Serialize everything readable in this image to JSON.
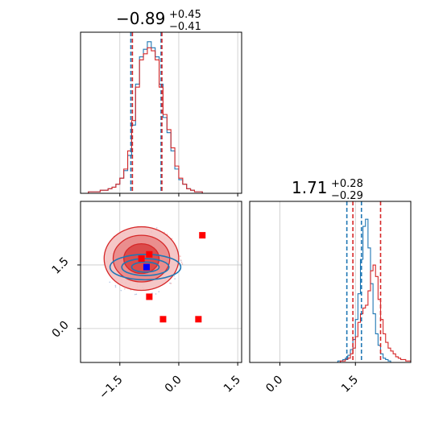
{
  "chart_data": [
    {
      "type": "histogram",
      "panel": "top-left",
      "title_value": "−0.89",
      "title_plus": "+0.45",
      "title_minus": "−0.41",
      "xlim": [
        -2.5,
        1.6
      ],
      "grid": true,
      "bin_edges_start": -2.5,
      "bin_width": 0.1,
      "series": [
        {
          "color": "#1f77b4",
          "counts": [
            0,
            0,
            1,
            1,
            1,
            2,
            2,
            3,
            4,
            6,
            10,
            15,
            25,
            45,
            72,
            90,
            95,
            100,
            96,
            90,
            72,
            50,
            40,
            28,
            16,
            9,
            6,
            3,
            2,
            1,
            1,
            0,
            0,
            0,
            0,
            0,
            0,
            0,
            0,
            0,
            0
          ]
        },
        {
          "color": "#d62728",
          "counts": [
            0,
            0,
            1,
            1,
            1,
            2,
            2,
            3,
            4,
            6,
            10,
            16,
            28,
            48,
            70,
            88,
            92,
            96,
            94,
            88,
            70,
            52,
            42,
            30,
            18,
            10,
            6,
            3,
            2,
            1,
            1,
            0,
            0,
            0,
            0,
            0,
            0,
            0,
            0,
            0,
            0
          ]
        }
      ],
      "quantile_lines": {
        "#1f77b4": [
          -1.22,
          -0.45
        ],
        "#d62728": [
          -1.18,
          -0.43
        ]
      }
    },
    {
      "type": "histogram",
      "panel": "bottom-right",
      "title_value": "1.71",
      "title_plus": "+0.28",
      "title_minus": "−0.29",
      "xlim": [
        -0.6,
        2.6
      ],
      "xticks": [
        "0.0",
        "1.5"
      ],
      "grid": true,
      "bin_edges_start": -0.6,
      "bin_width": 0.05,
      "series": [
        {
          "color": "#1f77b4",
          "counts": [
            0,
            0,
            0,
            0,
            0,
            0,
            0,
            0,
            0,
            0,
            0,
            0,
            0,
            0,
            0,
            0,
            0,
            0,
            0,
            0,
            0,
            0,
            0,
            0,
            0,
            0,
            0,
            0,
            0,
            0,
            0,
            0,
            0,
            0,
            0,
            1,
            1,
            2,
            3,
            5,
            9,
            16,
            30,
            48,
            72,
            95,
            100,
            80,
            55,
            34,
            20,
            12,
            6,
            3,
            2,
            1,
            0,
            0,
            0,
            0,
            0,
            0,
            0,
            0
          ]
        },
        {
          "color": "#d62728",
          "counts": [
            0,
            0,
            0,
            0,
            0,
            0,
            0,
            0,
            0,
            0,
            0,
            0,
            0,
            0,
            0,
            0,
            0,
            0,
            0,
            0,
            0,
            0,
            0,
            0,
            0,
            0,
            0,
            0,
            0,
            0,
            0,
            0,
            0,
            0,
            0,
            0,
            1,
            1,
            2,
            3,
            6,
            10,
            18,
            28,
            34,
            38,
            40,
            50,
            64,
            68,
            60,
            44,
            30,
            20,
            14,
            10,
            8,
            6,
            4,
            3,
            2,
            2,
            1,
            1
          ]
        }
      ],
      "quantile_lines": {
        "#1f77b4": [
          1.33,
          1.62
        ],
        "#d62728": [
          1.45,
          2.0
        ]
      }
    },
    {
      "type": "scatter",
      "panel": "bottom-left",
      "xlim": [
        -2.5,
        1.6
      ],
      "ylim": [
        -0.8,
        3.0
      ],
      "xticks": [
        "−1.5",
        "0.0",
        "1.5"
      ],
      "yticks": [
        "0.0",
        "1.5"
      ],
      "grid": true,
      "contours": [
        {
          "color": "#d62728",
          "center": [
            -0.95,
            1.65
          ],
          "radius": [
            [
              0.95,
              0.75
            ],
            [
              0.72,
              0.55
            ],
            [
              0.45,
              0.35
            ]
          ]
        },
        {
          "color": "#1f77b4",
          "center": [
            -0.85,
            1.45
          ],
          "radius": [
            [
              0.9,
              0.3
            ],
            [
              0.6,
              0.2
            ],
            [
              0.35,
              0.12
            ]
          ]
        }
      ],
      "points": [
        {
          "color": "#ff0000",
          "x": 0.6,
          "y": 2.2
        },
        {
          "color": "#ff0000",
          "x": -0.75,
          "y": 1.75
        },
        {
          "color": "#ff0000",
          "x": -0.95,
          "y": 1.65
        },
        {
          "color": "#ff0000",
          "x": -0.75,
          "y": 0.75
        },
        {
          "color": "#ff0000",
          "x": -0.4,
          "y": 0.22
        },
        {
          "color": "#ff0000",
          "x": 0.5,
          "y": 0.22
        },
        {
          "color": "#0000ff",
          "x": -0.82,
          "y": 1.45
        }
      ]
    }
  ]
}
